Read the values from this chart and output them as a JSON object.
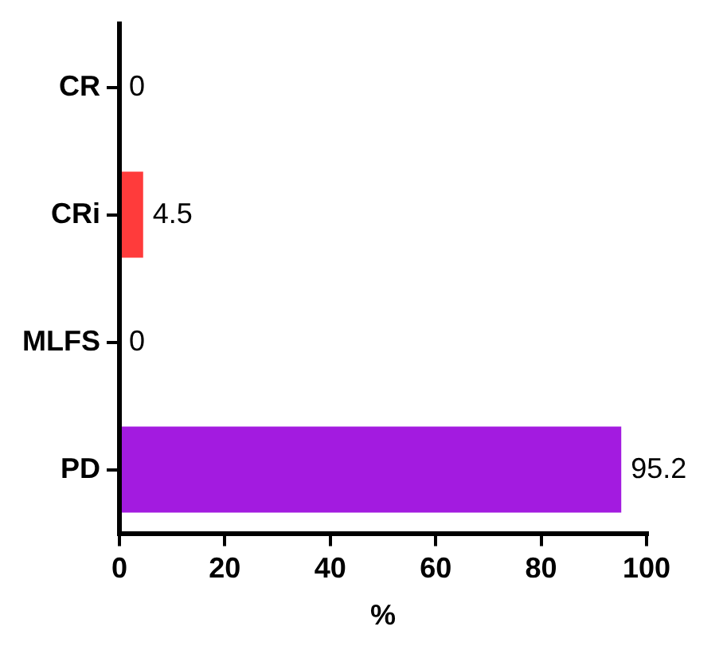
{
  "chart_data": {
    "type": "bar",
    "orientation": "horizontal",
    "xlabel": "%",
    "categories": [
      "CR",
      "CRi",
      "MLFS",
      "PD"
    ],
    "values": [
      0,
      4.5,
      0,
      95.2
    ],
    "colors": [
      "#ff3b3b",
      "#ff3b3b",
      "#a31be0",
      "#a31be0"
    ],
    "xlim": [
      0,
      100
    ],
    "xticks": [
      0,
      20,
      40,
      60,
      80,
      100
    ],
    "data_labels": true,
    "grid": false,
    "legend": false
  }
}
